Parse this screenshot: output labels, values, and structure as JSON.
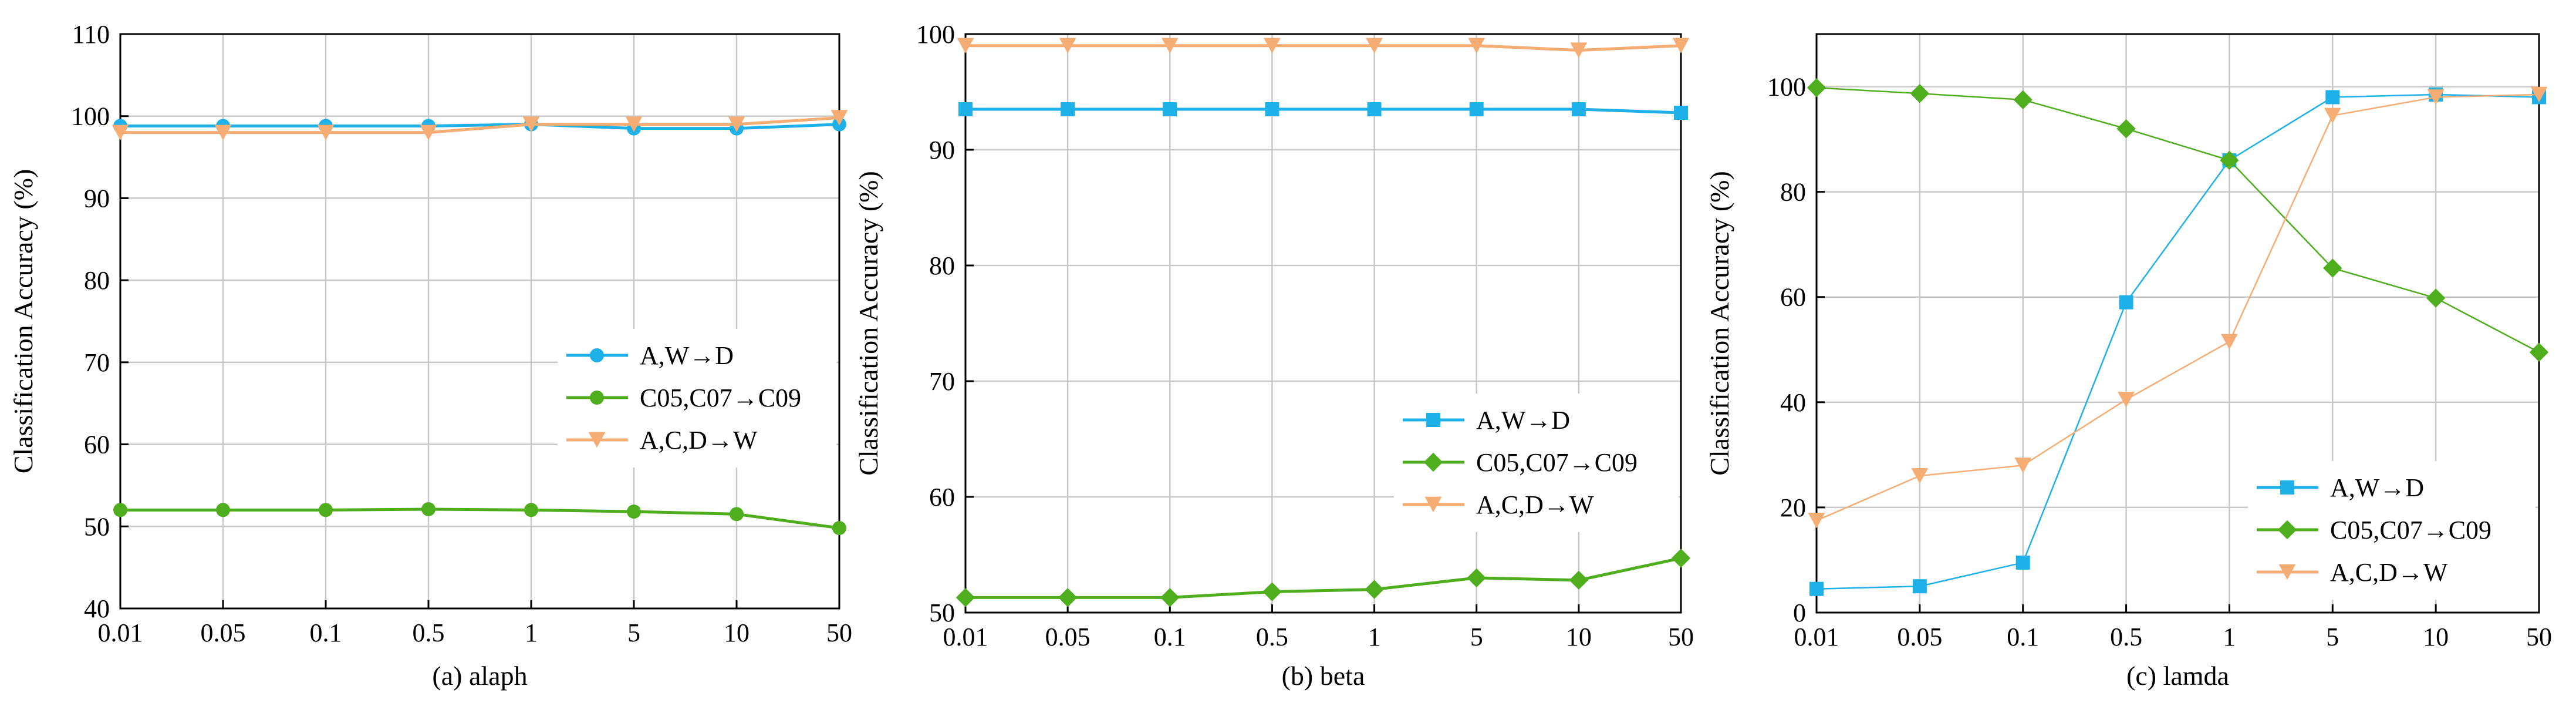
{
  "chart_data": [
    {
      "type": "line",
      "caption": "(a)  alaph",
      "xlabel": "",
      "ylabel": "Classification Accuracy (%)",
      "categories": [
        "0.01",
        "0.05",
        "0.1",
        "0.5",
        "1",
        "5",
        "10",
        "50"
      ],
      "yticks": [
        40,
        50,
        60,
        70,
        80,
        90,
        100,
        110
      ],
      "ylim": [
        40,
        110
      ],
      "grid": true,
      "legend_position": "center-right",
      "series": [
        {
          "name": "A,W→D",
          "color": "#1eb0e8",
          "marker": "circle",
          "values": [
            98.8,
            98.8,
            98.8,
            98.8,
            99.0,
            98.5,
            98.5,
            99.0
          ]
        },
        {
          "name": "C05,C07→C09",
          "color": "#4fae1d",
          "marker": "circle",
          "values": [
            52.0,
            52.0,
            52.0,
            52.1,
            52.0,
            51.8,
            51.5,
            49.8
          ]
        },
        {
          "name": "A,C,D→W",
          "color": "#f6ad74",
          "marker": "triangle-down",
          "values": [
            98.0,
            98.0,
            98.0,
            98.0,
            99.0,
            99.0,
            99.0,
            99.8
          ]
        }
      ]
    },
    {
      "type": "line",
      "caption": "(b)  beta",
      "xlabel": "",
      "ylabel": "Classification Accuracy (%)",
      "categories": [
        "0.01",
        "0.05",
        "0.1",
        "0.5",
        "1",
        "5",
        "10",
        "50"
      ],
      "yticks": [
        50,
        60,
        70,
        80,
        90,
        100
      ],
      "ylim": [
        50,
        100
      ],
      "grid": true,
      "legend_position": "center-right",
      "series": [
        {
          "name": "A,W→D",
          "color": "#1eb0e8",
          "marker": "square",
          "values": [
            93.5,
            93.5,
            93.5,
            93.5,
            93.5,
            93.5,
            93.5,
            93.2
          ]
        },
        {
          "name": "C05,C07→C09",
          "color": "#4fae1d",
          "marker": "diamond",
          "values": [
            51.3,
            51.3,
            51.3,
            51.8,
            52.0,
            53.0,
            52.8,
            54.7
          ]
        },
        {
          "name": "A,C,D→W",
          "color": "#f6ad74",
          "marker": "triangle-down",
          "values": [
            99.0,
            99.0,
            99.0,
            99.0,
            99.0,
            99.0,
            98.6,
            99.0
          ]
        }
      ]
    },
    {
      "type": "line",
      "caption": "(c)  lamda",
      "xlabel": "",
      "ylabel": "Classification Accuracy (%)",
      "categories": [
        "0.01",
        "0.05",
        "0.1",
        "0.5",
        "1",
        "5",
        "10",
        "50"
      ],
      "yticks": [
        0,
        20,
        40,
        60,
        80,
        100
      ],
      "ylim": [
        0,
        110
      ],
      "grid": true,
      "legend_position": "bottom-right",
      "series": [
        {
          "name": "A,W→D",
          "color": "#1eb0e8",
          "marker": "square",
          "values": [
            4.5,
            5.0,
            9.5,
            59.0,
            86.0,
            98.0,
            98.5,
            98.0
          ]
        },
        {
          "name": "C05,C07→C09",
          "color": "#4fae1d",
          "marker": "diamond",
          "values": [
            99.8,
            98.7,
            97.5,
            92.0,
            86.0,
            65.5,
            59.8,
            49.5
          ]
        },
        {
          "name": "A,C,D→W",
          "color": "#f6ad74",
          "marker": "triangle-down",
          "values": [
            17.5,
            26.0,
            28.0,
            40.5,
            51.5,
            94.5,
            98.0,
            98.5
          ]
        }
      ]
    }
  ]
}
